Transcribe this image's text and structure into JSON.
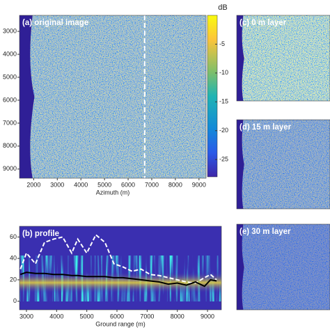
{
  "chart_data": [
    {
      "type": "image",
      "title": "(a) original image",
      "xlabel": "Azimuth (m)",
      "xlim": [
        1400,
        9300
      ],
      "xticks": [
        2000,
        3000,
        4000,
        5000,
        6000,
        7000,
        8000,
        9000
      ],
      "ylim": [
        2300,
        9400
      ],
      "yticks": [
        3000,
        4000,
        5000,
        6000,
        7000,
        8000,
        9000
      ],
      "marker_x": 6700,
      "colorbar": {
        "label": "dB",
        "lim": [
          -28,
          0
        ],
        "ticks": [
          -5,
          -10,
          -15,
          -20,
          -25
        ]
      }
    },
    {
      "type": "line",
      "title": "(b) profile",
      "xlabel": "Ground range (m)",
      "xlim": [
        2770,
        9460
      ],
      "xticks": [
        3000,
        4000,
        5000,
        6000,
        7000,
        8000,
        9000
      ],
      "ylim": [
        -8,
        70
      ],
      "yticks": [
        0,
        20,
        40,
        60
      ],
      "x": [
        2800,
        3000,
        3300,
        3600,
        3900,
        4200,
        4500,
        4700,
        5000,
        5300,
        5600,
        5900,
        6200,
        6500,
        6800,
        7100,
        7400,
        7700,
        8000,
        8300,
        8600,
        8900,
        9100,
        9300
      ],
      "series": [
        {
          "name": "upper",
          "color": "#ffffff",
          "dashed": true,
          "values": [
            30,
            45,
            35,
            55,
            58,
            60,
            45,
            58,
            45,
            62,
            55,
            35,
            32,
            28,
            30,
            25,
            24,
            22,
            20,
            18,
            17,
            22,
            25,
            20
          ]
        },
        {
          "name": "mean",
          "color": "#000000",
          "dashed": false,
          "values": [
            25,
            27,
            26,
            26,
            25,
            25,
            24,
            24,
            23,
            23,
            23,
            22,
            22,
            21,
            20,
            19,
            18,
            16,
            17,
            15,
            18,
            14,
            20,
            19
          ]
        }
      ]
    },
    {
      "type": "image",
      "title": "(c) 0 m layer",
      "tone": "bright"
    },
    {
      "type": "image",
      "title": "(d) 15 m layer",
      "tone": "mid"
    },
    {
      "type": "image",
      "title": "(e) 30 m layer",
      "tone": "dark"
    }
  ]
}
